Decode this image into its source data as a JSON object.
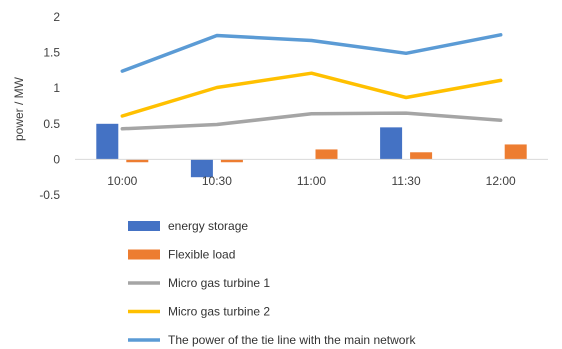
{
  "chart_data": {
    "type": "bar",
    "title": "",
    "xlabel": "",
    "ylabel": "power / MW",
    "ylim": [
      -0.5,
      2
    ],
    "yticks": [
      -0.5,
      0,
      0.5,
      1,
      1.5,
      2
    ],
    "ytick_labels": [
      "-0.5",
      "0",
      "0.5",
      "1",
      "1.5",
      "2"
    ],
    "categories": [
      "10:00",
      "10:30",
      "11:00",
      "11:30",
      "12:00"
    ],
    "grid": false,
    "legend_position": "bottom",
    "series": [
      {
        "name": "energy storage",
        "kind": "bar",
        "color": "#4472c4",
        "values": [
          0.5,
          -0.25,
          0,
          0.45,
          0
        ]
      },
      {
        "name": "Flexible load",
        "kind": "bar",
        "color": "#ed7d31",
        "values": [
          -0.04,
          -0.04,
          0.14,
          0.1,
          0.21
        ]
      },
      {
        "name": "Micro gas turbine 1",
        "kind": "line",
        "color": "#a5a5a5",
        "values": [
          0.43,
          0.49,
          0.64,
          0.65,
          0.55
        ]
      },
      {
        "name": "Micro gas turbine 2",
        "kind": "line",
        "color": "#ffc000",
        "values": [
          0.61,
          1.01,
          1.21,
          0.87,
          1.11
        ]
      },
      {
        "name": "The power of the tie line with the main network",
        "kind": "line",
        "color": "#5b9bd5",
        "values": [
          1.24,
          1.74,
          1.67,
          1.49,
          1.75
        ]
      }
    ]
  }
}
